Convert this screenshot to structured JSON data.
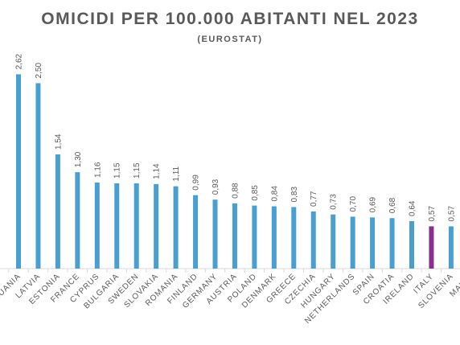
{
  "chart_data": {
    "type": "bar",
    "title": "OMICIDI PER 100.000 ABITANTI NEL 2023",
    "subtitle": "(EUROSTAT)",
    "categories": [
      "LITHUANIA",
      "LATVIA",
      "ESTONIA",
      "FRANCE",
      "CYPRUS",
      "BULGARIA",
      "SWEDEN",
      "SLOVAKIA",
      "ROMANIA",
      "FINLAND",
      "GERMANY",
      "AUSTRIA",
      "POLAND",
      "DENMARK",
      "GREECE",
      "CZECHIA",
      "HUNGARY",
      "NETHERLANDS",
      "SPAIN",
      "CROATIA",
      "IRELAND",
      "ITALY",
      "SLOVENIA",
      "MALTA"
    ],
    "values": [
      2.62,
      2.5,
      1.54,
      1.3,
      1.16,
      1.15,
      1.15,
      1.14,
      1.11,
      0.99,
      0.93,
      0.88,
      0.85,
      0.84,
      0.83,
      0.77,
      0.73,
      0.7,
      0.69,
      0.68,
      0.64,
      0.57,
      0.57,
      null
    ],
    "value_labels": [
      "2,62",
      "2,50",
      "1,54",
      "1,30",
      "1,16",
      "1,15",
      "1,15",
      "1,14",
      "1,11",
      "0,99",
      "0,93",
      "0,88",
      "0,85",
      "0,84",
      "0,83",
      "0,77",
      "0,73",
      "0,70",
      "0,69",
      "0,68",
      "0,64",
      "0,57",
      "0,57",
      ""
    ],
    "highlight_category": "ITALY",
    "ylim": [
      0,
      2.7
    ],
    "grid": false,
    "colors": {
      "bar": "#4a9fd1",
      "highlight": "#8b2f8f",
      "axis": "#d9d9d9",
      "text": "#595959"
    }
  }
}
